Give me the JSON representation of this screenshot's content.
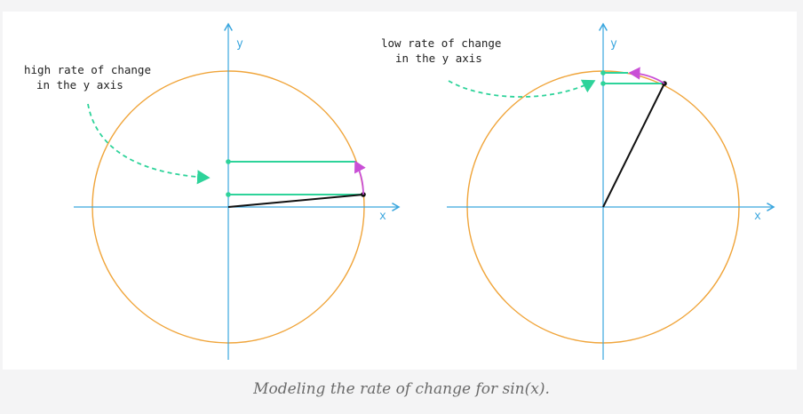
{
  "diagrams": [
    {
      "axis_x_label": "x",
      "axis_y_label": "y",
      "annotation_lines": [
        "high rate of change",
        "in the y axis"
      ]
    },
    {
      "axis_x_label": "x",
      "axis_y_label": "y",
      "annotation_lines": [
        "low rate of change",
        "in the y axis"
      ]
    }
  ],
  "caption": "Modeling the rate of change for sin(x).",
  "colors": {
    "circle": "#f0a53b",
    "axis": "#3aa6de",
    "sine_segment": "#2ed39a",
    "radius": "#111111",
    "arc": "#c94fd6",
    "annotation_arrow": "#2ed39a"
  }
}
